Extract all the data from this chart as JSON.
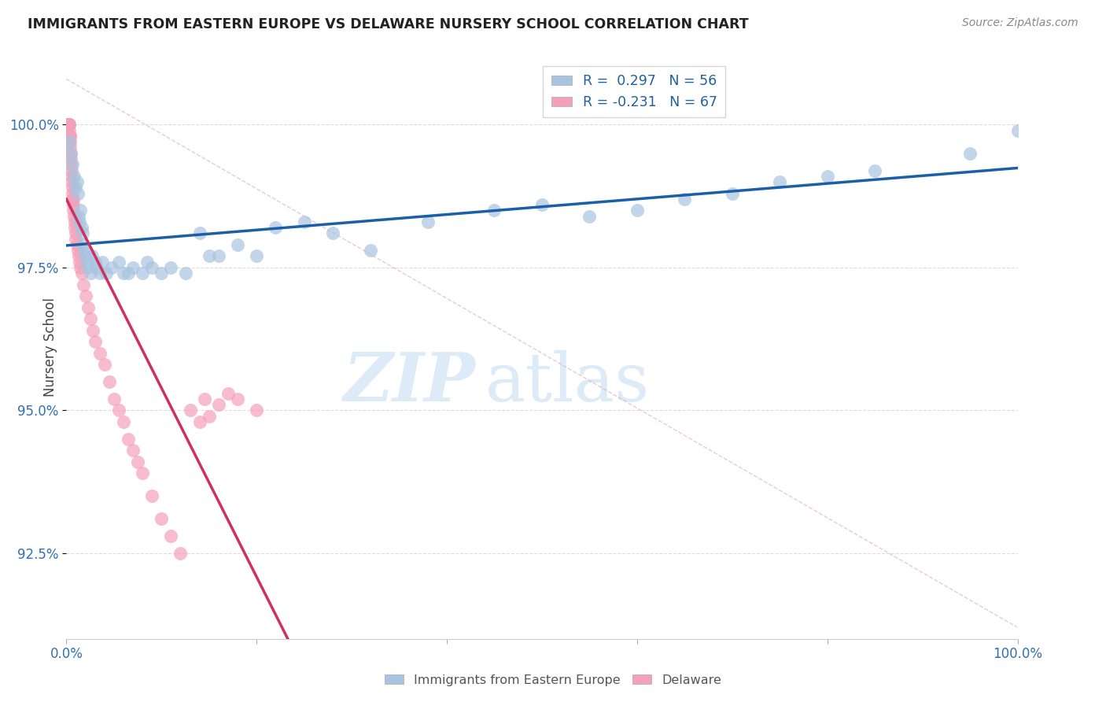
{
  "title": "IMMIGRANTS FROM EASTERN EUROPE VS DELAWARE NURSERY SCHOOL CORRELATION CHART",
  "source": "Source: ZipAtlas.com",
  "ylabel": "Nursery School",
  "legend_blue_r": "R =  0.297",
  "legend_blue_n": "N = 56",
  "legend_pink_r": "R = -0.231",
  "legend_pink_n": "N = 67",
  "legend_blue_label": "Immigrants from Eastern Europe",
  "legend_pink_label": "Delaware",
  "blue_color": "#a8c4e0",
  "pink_color": "#f4a0b8",
  "blue_line_color": "#1a5fa8",
  "pink_line_color": "#d03060",
  "blue_scatter_x": [
    0.3,
    0.5,
    0.6,
    0.8,
    1.0,
    1.1,
    1.2,
    1.3,
    1.4,
    1.5,
    1.6,
    1.7,
    1.8,
    1.9,
    2.0,
    2.1,
    2.3,
    2.5,
    2.7,
    3.0,
    3.2,
    3.5,
    3.8,
    4.2,
    4.8,
    5.5,
    6.0,
    6.5,
    7.0,
    8.0,
    8.5,
    9.0,
    10.0,
    11.0,
    12.5,
    14.0,
    15.0,
    16.0,
    18.0,
    20.0,
    22.0,
    25.0,
    28.0,
    32.0,
    38.0,
    45.0,
    50.0,
    55.0,
    60.0,
    65.0,
    70.0,
    75.0,
    80.0,
    85.0,
    95.0,
    100.0
  ],
  "blue_scatter_y": [
    99.7,
    99.5,
    99.3,
    99.1,
    98.9,
    99.0,
    98.8,
    98.4,
    98.3,
    98.5,
    98.2,
    98.1,
    97.9,
    97.8,
    97.7,
    97.6,
    97.5,
    97.4,
    97.7,
    97.6,
    97.5,
    97.4,
    97.6,
    97.4,
    97.5,
    97.6,
    97.4,
    97.4,
    97.5,
    97.4,
    97.6,
    97.5,
    97.4,
    97.5,
    97.4,
    98.1,
    97.7,
    97.7,
    97.9,
    97.7,
    98.2,
    98.3,
    98.1,
    97.8,
    98.3,
    98.5,
    98.6,
    98.4,
    98.5,
    98.7,
    98.8,
    99.0,
    99.1,
    99.2,
    99.5,
    99.9
  ],
  "pink_scatter_x": [
    0.05,
    0.08,
    0.1,
    0.12,
    0.15,
    0.18,
    0.2,
    0.22,
    0.25,
    0.28,
    0.3,
    0.33,
    0.35,
    0.38,
    0.4,
    0.42,
    0.45,
    0.48,
    0.5,
    0.52,
    0.55,
    0.58,
    0.6,
    0.63,
    0.65,
    0.68,
    0.7,
    0.75,
    0.8,
    0.85,
    0.9,
    0.95,
    1.0,
    1.1,
    1.2,
    1.3,
    1.4,
    1.5,
    1.6,
    1.8,
    2.0,
    2.3,
    2.5,
    2.8,
    3.0,
    3.5,
    4.0,
    4.5,
    5.0,
    5.5,
    6.0,
    6.5,
    7.0,
    7.5,
    8.0,
    9.0,
    10.0,
    11.0,
    12.0,
    13.0,
    14.0,
    14.5,
    15.0,
    16.0,
    17.0,
    18.0,
    20.0
  ],
  "pink_scatter_y": [
    100.0,
    100.0,
    100.0,
    100.0,
    100.0,
    100.0,
    100.0,
    100.0,
    100.0,
    100.0,
    100.0,
    99.9,
    99.8,
    99.8,
    99.7,
    99.6,
    99.5,
    99.4,
    99.3,
    99.2,
    99.1,
    99.0,
    98.9,
    98.8,
    98.7,
    98.7,
    98.6,
    98.5,
    98.4,
    98.3,
    98.2,
    98.1,
    98.0,
    97.9,
    97.8,
    97.7,
    97.6,
    97.5,
    97.4,
    97.2,
    97.0,
    96.8,
    96.6,
    96.4,
    96.2,
    96.0,
    95.8,
    95.5,
    95.2,
    95.0,
    94.8,
    94.5,
    94.3,
    94.1,
    93.9,
    93.5,
    93.1,
    92.8,
    92.5,
    95.0,
    94.8,
    95.2,
    94.9,
    95.1,
    95.3,
    95.2,
    95.0
  ],
  "xlim": [
    0,
    100
  ],
  "ylim": [
    91.0,
    101.2
  ],
  "yticks": [
    92.5,
    95.0,
    97.5,
    100.0
  ],
  "ytick_labels": [
    "92.5%",
    "95.0%",
    "97.5%",
    "100.0%"
  ],
  "xtick_labels_left": "0.0%",
  "xtick_labels_right": "100.0%",
  "background_color": "#ffffff",
  "grid_color": "#dddddd",
  "watermark_zip": "ZIP",
  "watermark_atlas": "atlas"
}
